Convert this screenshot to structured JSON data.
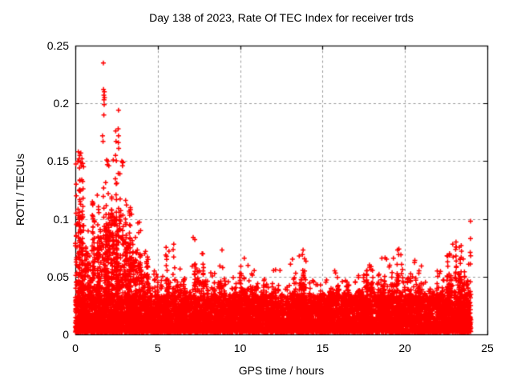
{
  "chart_data": {
    "type": "scatter",
    "title": "Day 138 of 2023, Rate Of TEC Index for receiver trds",
    "xlabel": "GPS time / hours",
    "ylabel": "ROTI / TECUs",
    "xlim": [
      0,
      25
    ],
    "ylim": [
      0,
      0.25
    ],
    "xticks": [
      0,
      5,
      10,
      15,
      20,
      25
    ],
    "xtick_labels": [
      "0",
      "5",
      "10",
      "15",
      "20",
      "25"
    ],
    "yticks": [
      0,
      0.05,
      0.1,
      0.15,
      0.2,
      0.25
    ],
    "ytick_labels": [
      "0",
      "0.05",
      "0.1",
      "0.15",
      "0.2",
      "0.25"
    ],
    "grid": "dashed-major",
    "legend": "none",
    "marker": "plus",
    "colors": {
      "points": "#ff0000",
      "grid": "#9b9b9b",
      "frame": "#000000",
      "text": "#000000",
      "background": "#ffffff"
    },
    "data_time_range_hours": [
      0,
      24
    ],
    "max_point": {
      "hour": 1.7,
      "roti": 0.235
    },
    "summary": "Dense ROTI scatter 0-0.04 TECUs all day; strong activity 0-4.5 h with peaks to 0.235; moderate spikes 0.05-0.10 later, rising again near 24 h",
    "envelope_bins": {
      "bin_hours": 0.5,
      "start_hour": 0,
      "dense_top": [
        0.105,
        0.068,
        0.078,
        0.098,
        0.1,
        0.09,
        0.08,
        0.072,
        0.05,
        0.038,
        0.035,
        0.046,
        0.04,
        0.035,
        0.04,
        0.046,
        0.037,
        0.04,
        0.034,
        0.038,
        0.042,
        0.04,
        0.035,
        0.032,
        0.038,
        0.032,
        0.042,
        0.046,
        0.034,
        0.032,
        0.034,
        0.038,
        0.034,
        0.032,
        0.037,
        0.042,
        0.038,
        0.042,
        0.042,
        0.045,
        0.037,
        0.042,
        0.034,
        0.038,
        0.04,
        0.047,
        0.05,
        0.044
      ],
      "spike_top": [
        0.148,
        0.1,
        0.122,
        0.135,
        0.152,
        0.15,
        0.112,
        0.1,
        0.075,
        0.056,
        0.052,
        0.076,
        0.06,
        0.05,
        0.062,
        0.07,
        0.055,
        0.062,
        0.048,
        0.055,
        0.066,
        0.058,
        0.05,
        0.044,
        0.056,
        0.044,
        0.066,
        0.071,
        0.048,
        0.044,
        0.048,
        0.056,
        0.05,
        0.046,
        0.056,
        0.062,
        0.056,
        0.067,
        0.065,
        0.074,
        0.054,
        0.066,
        0.048,
        0.055,
        0.06,
        0.075,
        0.081,
        0.066
      ]
    },
    "outliers": [
      [
        1.7,
        0.235
      ],
      [
        1.71,
        0.212
      ],
      [
        1.73,
        0.207
      ],
      [
        1.76,
        0.21
      ],
      [
        1.74,
        0.203
      ],
      [
        1.77,
        0.205
      ],
      [
        1.75,
        0.199
      ],
      [
        1.73,
        0.19
      ],
      [
        1.65,
        0.172
      ],
      [
        1.68,
        0.167
      ],
      [
        2.62,
        0.194
      ],
      [
        2.6,
        0.178
      ],
      [
        2.62,
        0.172
      ],
      [
        2.61,
        0.166
      ],
      [
        2.63,
        0.161
      ],
      [
        2.45,
        0.176
      ],
      [
        2.47,
        0.167
      ],
      [
        2.44,
        0.155
      ],
      [
        2.3,
        0.151
      ],
      [
        0.15,
        0.15
      ],
      [
        0.18,
        0.158
      ],
      [
        0.22,
        0.152
      ],
      [
        0.25,
        0.144
      ],
      [
        0.27,
        0.155
      ],
      [
        0.31,
        0.149
      ],
      [
        0.33,
        0.157
      ],
      [
        0.36,
        0.146
      ],
      [
        0.4,
        0.152
      ],
      [
        0.45,
        0.148
      ],
      [
        0.5,
        0.145
      ],
      [
        0.05,
        0.13
      ],
      [
        0.06,
        0.12
      ],
      [
        0.04,
        0.105
      ],
      [
        0.07,
        0.095
      ],
      [
        0.05,
        0.085
      ],
      [
        1.9,
        0.151
      ],
      [
        1.94,
        0.147
      ],
      [
        1.98,
        0.15
      ],
      [
        2.03,
        0.146
      ],
      [
        2.82,
        0.15
      ],
      [
        2.86,
        0.146
      ],
      [
        2.89,
        0.149
      ],
      [
        3.05,
        0.116
      ],
      [
        3.1,
        0.112
      ],
      [
        3.35,
        0.108
      ],
      [
        3.42,
        0.104
      ],
      [
        5.97,
        0.078
      ],
      [
        7.15,
        0.084
      ],
      [
        7.25,
        0.082
      ],
      [
        8.9,
        0.073
      ],
      [
        10.25,
        0.066
      ],
      [
        12.15,
        0.056
      ],
      [
        13.78,
        0.069
      ],
      [
        13.82,
        0.073
      ],
      [
        17.85,
        0.06
      ],
      [
        18.6,
        0.066
      ],
      [
        19.3,
        0.066
      ],
      [
        19.55,
        0.073
      ],
      [
        19.62,
        0.069
      ],
      [
        20.6,
        0.064
      ],
      [
        22.55,
        0.068
      ],
      [
        22.9,
        0.078
      ],
      [
        23.1,
        0.08
      ],
      [
        23.96,
        0.071
      ],
      [
        23.97,
        0.061
      ],
      [
        23.98,
        0.098
      ],
      [
        23.98,
        0.083
      ],
      [
        23.99,
        0.068
      ]
    ]
  }
}
